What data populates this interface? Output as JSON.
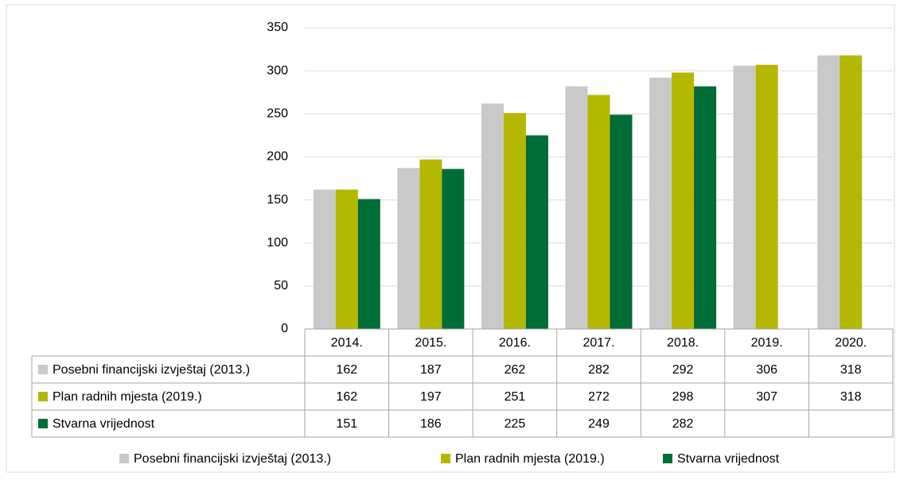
{
  "chart_data": {
    "type": "bar",
    "categories": [
      "2014.",
      "2015.",
      "2016.",
      "2017.",
      "2018.",
      "2019.",
      "2020."
    ],
    "series": [
      {
        "name": "Posebni financijski izvještaj (2013.)",
        "color": "#c9c9c9",
        "values": [
          162,
          187,
          262,
          282,
          292,
          306,
          318
        ]
      },
      {
        "name": "Plan radnih mjesta (2019.)",
        "color": "#b5b800",
        "values": [
          162,
          197,
          251,
          272,
          298,
          307,
          318
        ]
      },
      {
        "name": "Stvarna vrijednost",
        "color": "#006c36",
        "values": [
          151,
          186,
          225,
          249,
          282,
          null,
          null
        ]
      }
    ],
    "ylim": [
      0,
      350
    ],
    "yticks": [
      0,
      50,
      100,
      150,
      200,
      250,
      300,
      350
    ],
    "grid": true
  }
}
